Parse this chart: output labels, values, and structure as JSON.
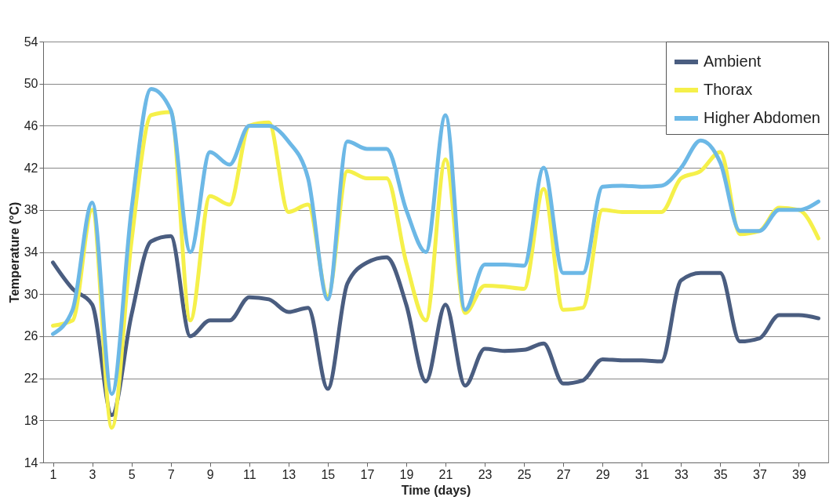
{
  "chart_data": {
    "type": "line",
    "xlabel": "Time (days)",
    "ylabel": "Temperature (°C)",
    "x": [
      1,
      2,
      3,
      4,
      5,
      6,
      7,
      8,
      9,
      10,
      11,
      12,
      13,
      14,
      15,
      16,
      17,
      18,
      19,
      20,
      21,
      22,
      23,
      24,
      25,
      26,
      27,
      28,
      29,
      30,
      31,
      32,
      33,
      34,
      35,
      36,
      37,
      38,
      39,
      40
    ],
    "xlim": [
      0.5,
      40.5
    ],
    "xticks": [
      1,
      3,
      5,
      7,
      9,
      11,
      13,
      15,
      17,
      19,
      21,
      23,
      25,
      27,
      29,
      31,
      33,
      35,
      37,
      39
    ],
    "ylim": [
      14,
      54
    ],
    "yticks": [
      14,
      18,
      22,
      26,
      30,
      34,
      38,
      42,
      46,
      50,
      54
    ],
    "grid": "y",
    "legend": "top right",
    "marker": "none",
    "line_style": "solid",
    "series": [
      {
        "name": "Ambient",
        "color": "#4a5d80",
        "values": [
          33,
          30.5,
          29,
          18.5,
          28,
          35,
          35.5,
          26,
          27.5,
          27.5,
          29.7,
          29.5,
          28.3,
          28.7,
          21,
          31,
          33,
          33.5,
          29,
          21.7,
          29,
          21.3,
          24.8,
          24.6,
          24.7,
          25.3,
          21.5,
          21.8,
          23.8,
          23.7,
          23.7,
          23.6,
          31.3,
          32,
          32,
          25.5,
          25.8,
          28,
          28,
          27.7
        ]
      },
      {
        "name": "Thorax",
        "color": "#f5f04a",
        "values": [
          27,
          27.5,
          38,
          17.3,
          35,
          47,
          47.3,
          27.5,
          39.3,
          38.5,
          46,
          46.3,
          37.8,
          38.5,
          29.8,
          41.7,
          41,
          41,
          33,
          27.5,
          42.8,
          28.2,
          30.8,
          30.7,
          30.5,
          40,
          28.5,
          28.7,
          38,
          37.8,
          37.8,
          37.8,
          41,
          41.7,
          43.5,
          35.7,
          36,
          38.2,
          38,
          35.3
        ]
      },
      {
        "name": "Higher Abdomen",
        "color": "#6cb8e6",
        "values": [
          26.2,
          28.5,
          38.7,
          20.5,
          38,
          49.5,
          47.5,
          34,
          43.5,
          42.3,
          46,
          46,
          44.5,
          41,
          29.5,
          44.5,
          43.8,
          43.8,
          38,
          34,
          47,
          28.5,
          32.8,
          32.8,
          32.7,
          42,
          32,
          32,
          40.2,
          40.3,
          40.2,
          40.3,
          42,
          44.6,
          42.5,
          36,
          36,
          38,
          38,
          38.8
        ]
      }
    ]
  }
}
